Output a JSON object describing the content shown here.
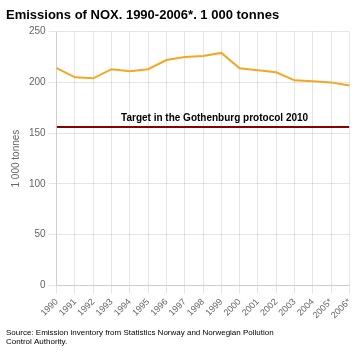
{
  "chart_data": {
    "type": "line",
    "title": "Emissions of NOX. 1990-2006*. 1 000 tonnes",
    "y_label": "1 000 tonnes",
    "categories": [
      "1990",
      "1991",
      "1992",
      "1993",
      "1994",
      "1995",
      "1996",
      "1997",
      "1998",
      "1999",
      "2000",
      "2001",
      "2002",
      "2003",
      "2004",
      "2005*",
      "2006*"
    ],
    "values": [
      214,
      205,
      204,
      213,
      211,
      213,
      222,
      225,
      226,
      229,
      214,
      212,
      210,
      202,
      201,
      200,
      197
    ],
    "color": "#f5a623",
    "target": {
      "value": 156,
      "label": "Target in the Gothenburg protocol 2010",
      "color": "#8b0000"
    },
    "ylim": [
      0,
      250
    ],
    "yticks": [
      0,
      50,
      100,
      150,
      200,
      250
    ],
    "grid": true,
    "source": "Source: Emission inventory from Statistics Norway and Norwegian Pollution\nControl Authority."
  }
}
